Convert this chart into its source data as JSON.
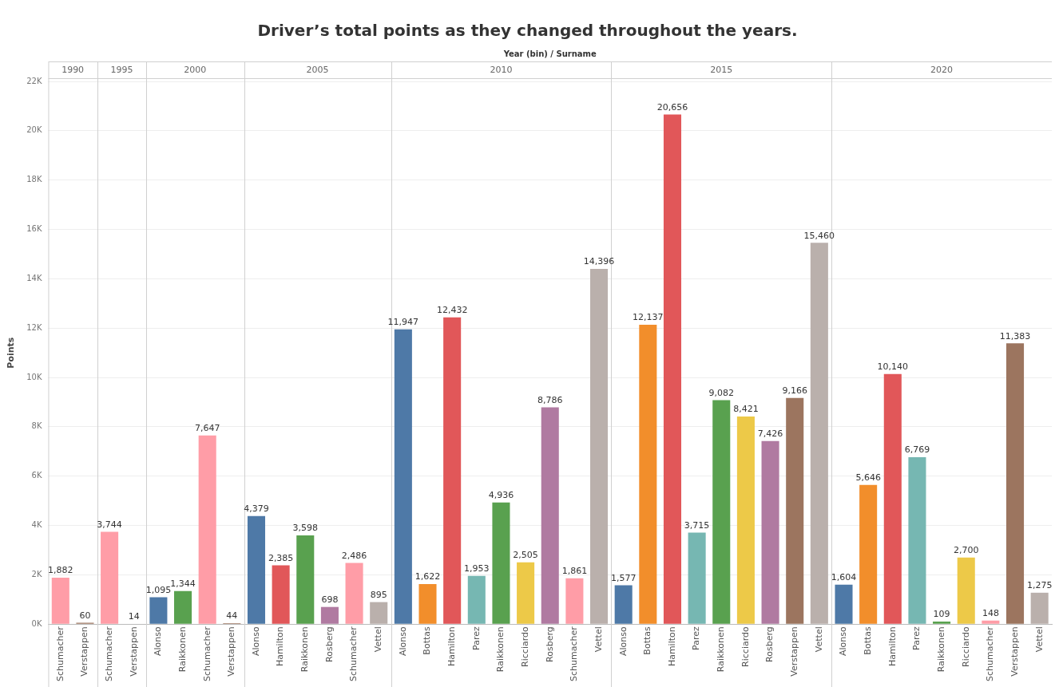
{
  "chart_data": {
    "type": "bar",
    "title": "Driver’s total points as they changed throughout the years.",
    "xlabel": "Year (bin) / Surname",
    "ylabel": "Points",
    "categories": [
      "Schumacher",
      "Verstappen",
      "Schumacher",
      "Verstappen",
      "Alonso",
      "Raikkonen",
      "Schumacher",
      "Verstappen",
      "Alonso",
      "Hamilton",
      "Raikkonen",
      "Rosberg",
      "Schumacher",
      "Vettel",
      "Alonso",
      "Bottas",
      "Hamilton",
      "Parez",
      "Raikkonen",
      "Ricciardo",
      "Rosberg",
      "Schumacher",
      "Vettel",
      "Alonso",
      "Bottas",
      "Hamilton",
      "Parez",
      "Raikkonen",
      "Ricciardo",
      "Rosberg",
      "Verstappen",
      "Vettel",
      "Alonso",
      "Bottas",
      "Hamilton",
      "Parez",
      "Raikkonen",
      "Ricciardo",
      "Schumacher",
      "Verstappen",
      "Vettel"
    ],
    "values": [
      1882,
      60,
      3744,
      14,
      1095,
      1344,
      7647,
      44,
      4379,
      2385,
      3598,
      698,
      2486,
      895,
      11947,
      1622,
      12432,
      1953,
      4936,
      2505,
      8786,
      1861,
      14396,
      1577,
      12137,
      20656,
      3715,
      9082,
      8421,
      7426,
      9166,
      15460,
      1604,
      5646,
      10140,
      6769,
      109,
      2700,
      148,
      11383,
      1275
    ],
    "colors": [
      "#ff9da7",
      "#9c755f",
      "#ff9da7",
      "#9c755f",
      "#4e79a7",
      "#59a14f",
      "#ff9da7",
      "#9c755f",
      "#4e79a7",
      "#e15759",
      "#59a14f",
      "#b07aa1",
      "#ff9da7",
      "#bab0ac",
      "#4e79a7",
      "#f28e2b",
      "#e15759",
      "#76b7b2",
      "#59a14f",
      "#edc948",
      "#b07aa1",
      "#ff9da7",
      "#bab0ac",
      "#4e79a7",
      "#f28e2b",
      "#e15759",
      "#76b7b2",
      "#59a14f",
      "#edc948",
      "#b07aa1",
      "#9c755f",
      "#bab0ac",
      "#4e79a7",
      "#f28e2b",
      "#e15759",
      "#76b7b2",
      "#59a14f",
      "#edc948",
      "#ff9da7",
      "#9c755f",
      "#bab0ac"
    ],
    "ylim": [
      0,
      22000
    ],
    "yticks": [
      {
        "value": 0,
        "label": "0K"
      },
      {
        "value": 2000,
        "label": "2K"
      },
      {
        "value": 4000,
        "label": "4K"
      },
      {
        "value": 6000,
        "label": "6K"
      },
      {
        "value": 8000,
        "label": "8K"
      },
      {
        "value": 10000,
        "label": "10K"
      },
      {
        "value": 12000,
        "label": "12K"
      },
      {
        "value": 14000,
        "label": "14K"
      },
      {
        "value": 16000,
        "label": "16K"
      },
      {
        "value": 18000,
        "label": "18K"
      },
      {
        "value": 20000,
        "label": "20K"
      },
      {
        "value": 22000,
        "label": "22K"
      }
    ],
    "annotations": [
      "1990",
      "1995",
      "2000",
      "2005",
      "2010",
      "2015",
      "2020"
    ],
    "value_labels": [
      "1,882",
      "60",
      "3,744",
      "14",
      "1,095",
      "1,344",
      "7,647",
      "44",
      "4,379",
      "2,385",
      "3,598",
      "698",
      "2,486",
      "895",
      "11,947",
      "1,622",
      "12,432",
      "1,953",
      "4,936",
      "2,505",
      "8,786",
      "1,861",
      "14,396",
      "1,577",
      "12,137",
      "20,656",
      "3,715",
      "9,082",
      "8,421",
      "7,426",
      "9,166",
      "15,460",
      "1,604",
      "5,646",
      "10,140",
      "6,769",
      "109",
      "2,700",
      "148",
      "11,383",
      "1,275"
    ],
    "grid": "y"
  }
}
